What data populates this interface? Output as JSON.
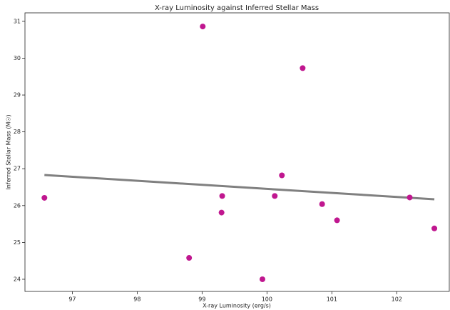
{
  "chart_data": {
    "type": "scatter",
    "title": "X-ray Luminosity against Inferred Stellar Mass",
    "x_label": "X-ray Luminosity (erg/s)",
    "y_label": "Inferred Stellar Mass (M☉)",
    "series": [
      {
        "color": "#c0178f",
        "x": [
          96.57,
          99.01,
          100.55,
          100.23,
          99.31,
          100.12,
          99.3,
          100.85,
          101.08,
          102.2,
          102.58,
          98.8,
          99.93
        ],
        "values": [
          26.21,
          30.86,
          29.73,
          26.82,
          26.26,
          26.26,
          25.81,
          26.04,
          25.6,
          26.22,
          25.38,
          24.58,
          24.0
        ]
      }
    ],
    "trend": {
      "color": "#808080",
      "x": [
        96.57,
        102.58
      ],
      "values": [
        26.83,
        26.17
      ]
    },
    "xlim": [
      96.27,
      102.81
    ],
    "xticks": [
      97,
      98,
      99,
      100,
      101,
      102
    ],
    "ylim": [
      23.67,
      31.23
    ],
    "yticks": [
      24,
      25,
      26,
      27,
      28,
      29,
      30,
      31
    ]
  }
}
